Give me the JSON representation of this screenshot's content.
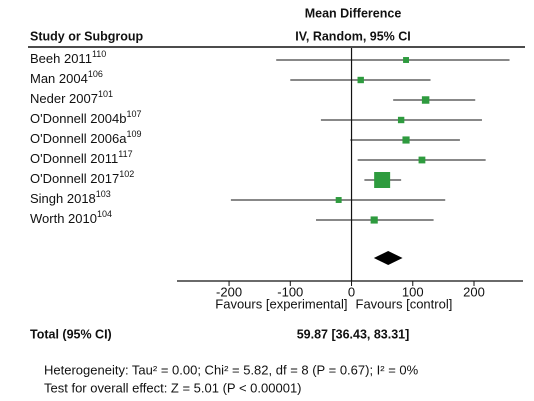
{
  "chart_data": {
    "type": "forest",
    "header": "Mean Difference",
    "column_left": "Study or Subgroup",
    "column_right": "IV, Random, 95% CI",
    "categories": [
      "Beeh 2011",
      "Man 2004",
      "Neder 2007",
      "O'Donnell 2004b",
      "O'Donnell 2006a",
      "O'Donnell 2011",
      "O'Donnell 2017",
      "Singh 2018",
      "Worth 2010"
    ],
    "refs": [
      "110",
      "106",
      "101",
      "107",
      "109",
      "117",
      "102",
      "103",
      "104"
    ],
    "values": [
      89,
      15,
      121,
      81,
      89,
      115,
      50,
      -21,
      37
    ],
    "ci_low": [
      -123,
      -100,
      68,
      -50,
      -2,
      10,
      21,
      -197,
      -58
    ],
    "ci_high": [
      258,
      129,
      202,
      213,
      177,
      219,
      81,
      153,
      134
    ],
    "weights": [
      3,
      4,
      7,
      4,
      6,
      5,
      59,
      3,
      6
    ],
    "color": "#2e9b3e",
    "xlim": [
      -285,
      280
    ],
    "xticks": [
      -200,
      -100,
      0,
      100,
      200
    ],
    "xlabel_left": "Favours [experimental]",
    "xlabel_right": "Favours [control]",
    "total": {
      "label": "Total (95% CI)",
      "value": 59.87,
      "lower": 36.43,
      "upper": 83.31,
      "value_label": "59.87 [36.43, 83.31]"
    },
    "heterogeneity": "Heterogeneity: Tau² = 0.00; Chi² = 5.82, df = 8 (P = 0.67); I² = 0%",
    "overall_effect": "Test for overall effect: Z = 5.01 (P < 0.00001)"
  }
}
